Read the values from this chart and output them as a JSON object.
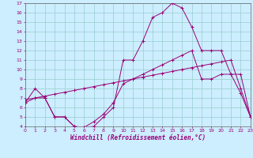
{
  "xlabel": "Windchill (Refroidissement éolien,°C)",
  "background_color": "#cceeff",
  "grid_color": "#99cccc",
  "line_color": "#990077",
  "xlim": [
    0,
    23
  ],
  "ylim": [
    4,
    17
  ],
  "xticks": [
    0,
    1,
    2,
    3,
    4,
    5,
    6,
    7,
    8,
    9,
    10,
    11,
    12,
    13,
    14,
    15,
    16,
    17,
    18,
    19,
    20,
    21,
    22,
    23
  ],
  "yticks": [
    4,
    5,
    6,
    7,
    8,
    9,
    10,
    11,
    12,
    13,
    14,
    15,
    16,
    17
  ],
  "series1_x": [
    0,
    1,
    2,
    3,
    4,
    5,
    6,
    7,
    8,
    9,
    10,
    11,
    12,
    13,
    14,
    15,
    16,
    17,
    18,
    19,
    20,
    21,
    22,
    23
  ],
  "series1_y": [
    6.5,
    8.0,
    7.0,
    5.0,
    5.0,
    4.0,
    3.9,
    4.5,
    5.3,
    6.5,
    8.5,
    9.0,
    9.5,
    10.0,
    10.5,
    11.0,
    11.5,
    12.0,
    9.0,
    9.0,
    9.5,
    9.5,
    7.5,
    5.0
  ],
  "series2_x": [
    0,
    1,
    2,
    3,
    4,
    5,
    6,
    7,
    8,
    9,
    10,
    11,
    12,
    13,
    14,
    15,
    16,
    17,
    18,
    19,
    20,
    21,
    22,
    23
  ],
  "series2_y": [
    6.8,
    7.0,
    7.2,
    7.4,
    7.6,
    7.8,
    8.0,
    8.2,
    8.4,
    8.6,
    8.8,
    9.0,
    9.2,
    9.4,
    9.6,
    9.8,
    10.0,
    10.2,
    10.4,
    10.6,
    10.8,
    11.0,
    8.0,
    5.0
  ],
  "series3_x": [
    0,
    1,
    2,
    3,
    4,
    5,
    6,
    7,
    8,
    9,
    10,
    11,
    12,
    13,
    14,
    15,
    16,
    17,
    18,
    19,
    20,
    21,
    22,
    23
  ],
  "series3_y": [
    6.5,
    7.0,
    7.0,
    5.0,
    5.0,
    4.0,
    3.9,
    4.0,
    5.0,
    6.0,
    11.0,
    11.0,
    13.0,
    15.5,
    16.0,
    17.0,
    16.5,
    14.5,
    12.0,
    12.0,
    12.0,
    9.5,
    9.5,
    5.0
  ]
}
